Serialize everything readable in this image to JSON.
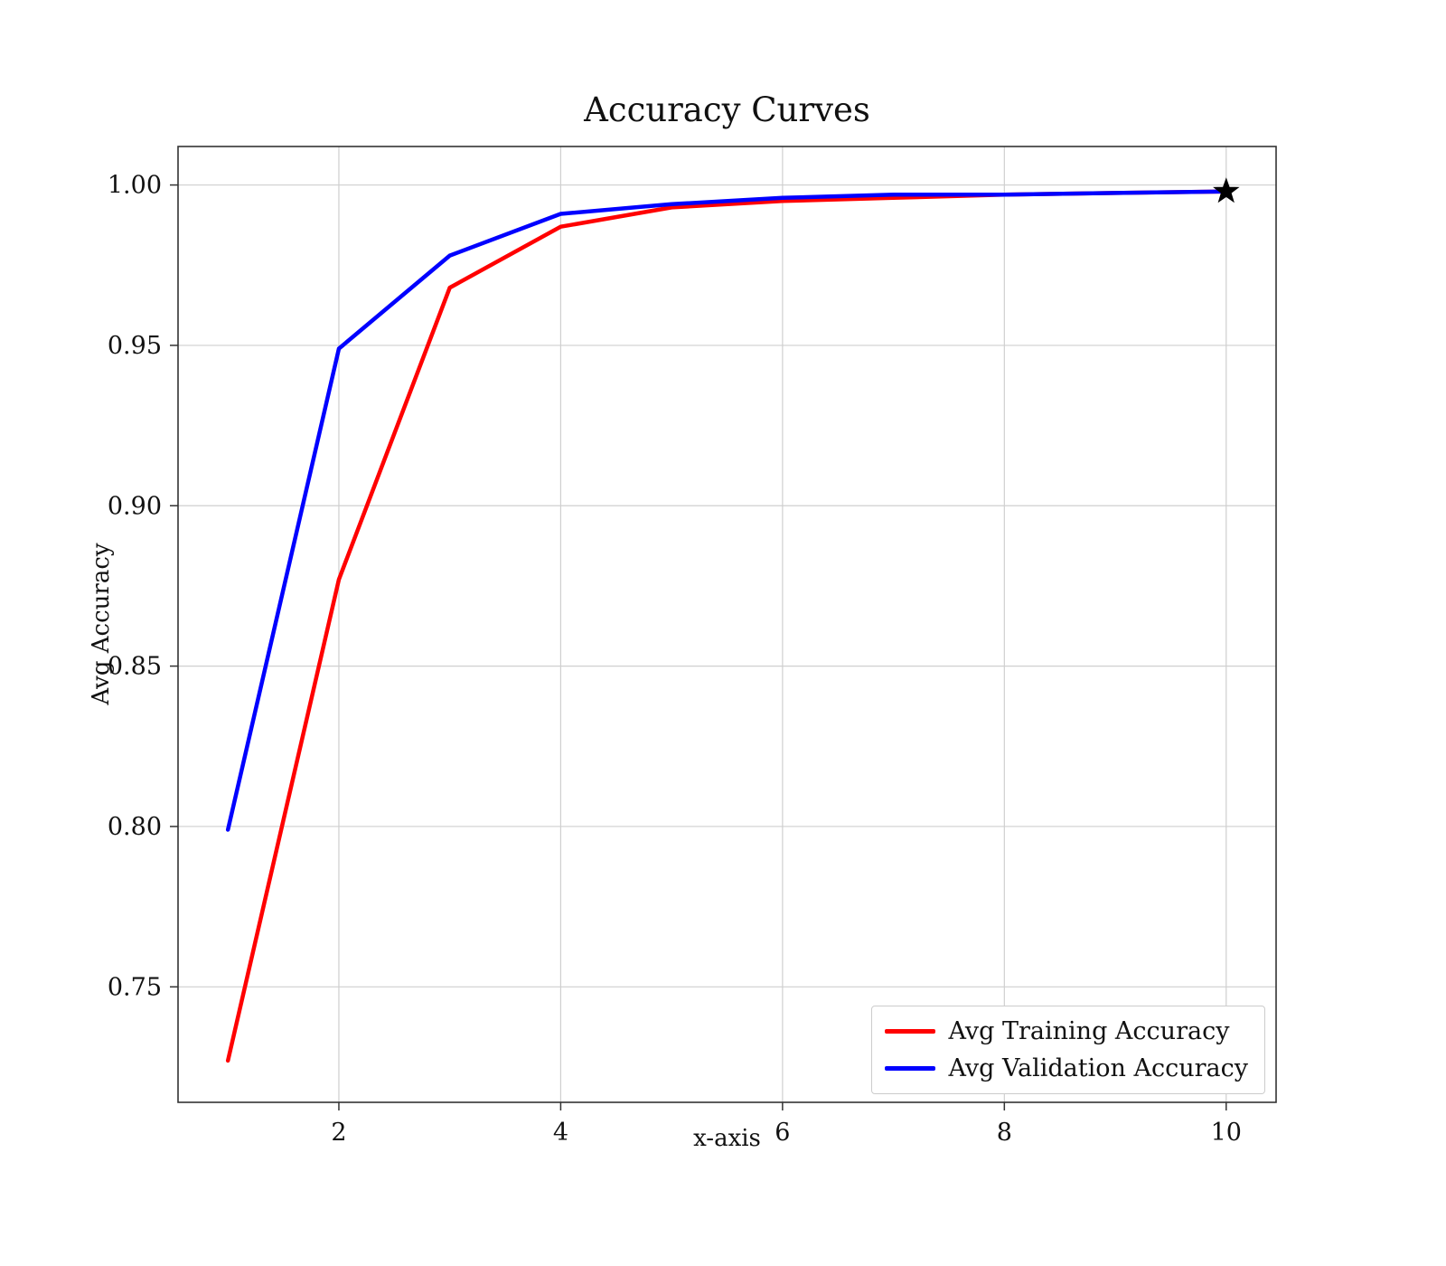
{
  "chart_data": {
    "type": "line",
    "title": "Accuracy Curves",
    "xlabel": "x-axis",
    "ylabel": "Avg Accuracy",
    "grid": true,
    "legend_position": "lower right",
    "x": [
      1,
      2,
      3,
      4,
      5,
      6,
      7,
      8,
      9,
      10
    ],
    "series": [
      {
        "name": "Avg Training Accuracy",
        "color": "#ff0000",
        "values": [
          0.727,
          0.877,
          0.968,
          0.987,
          0.993,
          0.995,
          0.996,
          0.997,
          0.9975,
          0.998
        ]
      },
      {
        "name": "Avg Validation Accuracy",
        "color": "#0000ff",
        "values": [
          0.799,
          0.949,
          0.978,
          0.991,
          0.994,
          0.996,
          0.997,
          0.997,
          0.9975,
          0.998
        ]
      }
    ],
    "final_marker": {
      "shape": "star",
      "x": 10,
      "y": 0.998,
      "color": "#000000"
    },
    "xticks": [
      2,
      4,
      6,
      8,
      10
    ],
    "yticks": [
      0.75,
      0.8,
      0.85,
      0.9,
      0.95,
      1.0
    ],
    "xlim": [
      0.55,
      10.45
    ],
    "ylim": [
      0.714,
      1.012
    ]
  }
}
